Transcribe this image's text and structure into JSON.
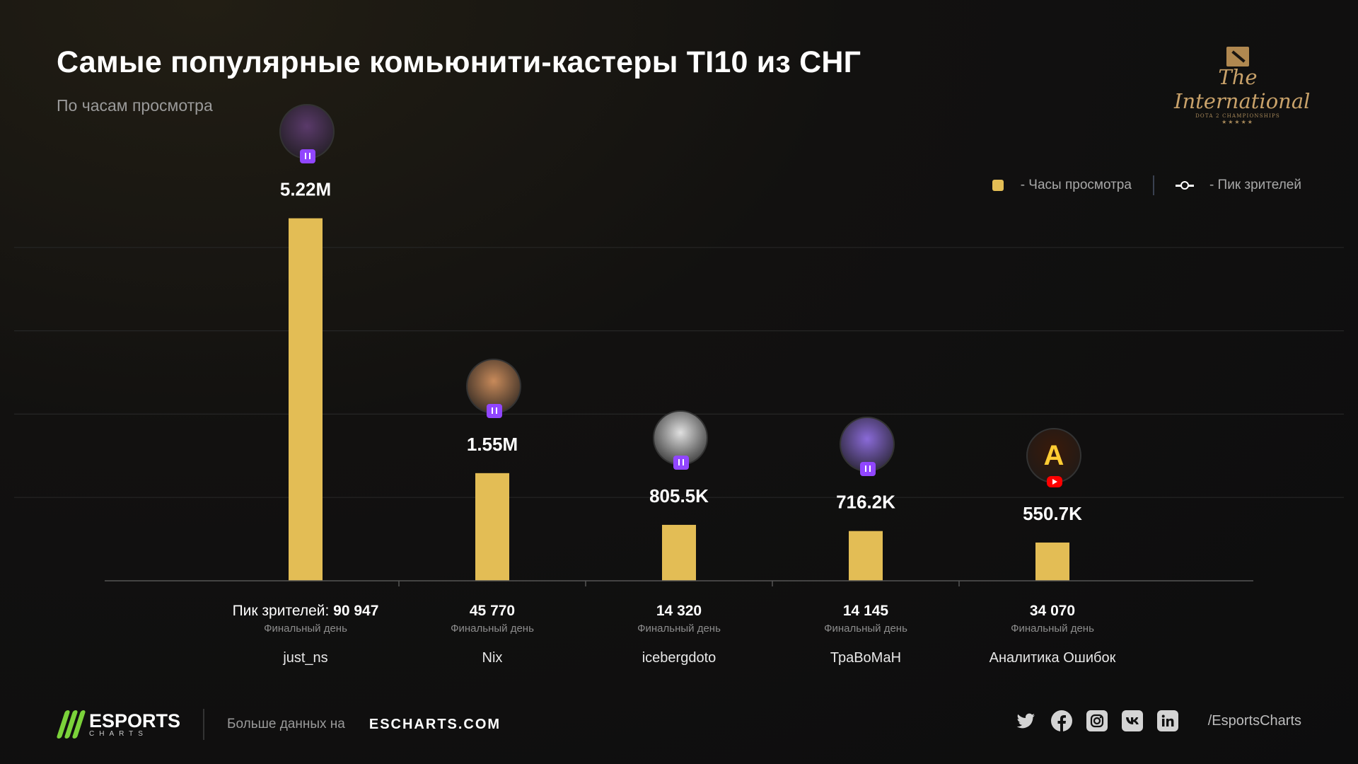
{
  "header": {
    "title": "Самые популярные комьюнити-кастеры TI10 из СНГ",
    "subtitle": "По часам просмотра"
  },
  "brand": {
    "ti_script": "The International",
    "ti_sub": "DOTA 2 CHAMPIONSHIPS",
    "ti_stars": "★★★★★"
  },
  "legend": {
    "hours_label": "- Часы просмотра",
    "peak_label": "-   Пик зрителей",
    "colors": {
      "hours": "#e3bd55",
      "peak": "#ffffff"
    }
  },
  "chart_data": {
    "type": "bar",
    "title": "Самые популярные комьюнити-кастеры TI10 из СНГ",
    "subtitle": "По часам просмотра",
    "categories": [
      "just_ns",
      "Nix",
      "icebergdoto",
      "ТраВоМаН",
      "Аналитика Ошибок"
    ],
    "values": [
      5220000,
      1550000,
      805500,
      716200,
      550700
    ],
    "value_labels": [
      "5.22M",
      "1.55M",
      "805.5K",
      "716.2K",
      "550.7K"
    ],
    "peak_viewers": [
      "90 947",
      "45 770",
      "14 320",
      "14 145",
      "34 070"
    ],
    "peak_prefix": "Пик зрителей:",
    "peak_note": "Финальный день",
    "platforms": [
      "twitch",
      "twitch",
      "twitch",
      "twitch",
      "youtube"
    ],
    "ylim": [
      0,
      6000000
    ],
    "grid": true,
    "legend_position": "top-right",
    "bar_color": "#e3bd55"
  },
  "footer": {
    "logo_big": "ESPORTS",
    "logo_small": "CHARTS",
    "more_text": "Больше данных на",
    "site": "ESCHARTS.COM",
    "handle": "/EsportsCharts",
    "social_icons": [
      "twitter-icon",
      "facebook-icon",
      "instagram-icon",
      "vk-icon",
      "linkedin-icon"
    ]
  }
}
